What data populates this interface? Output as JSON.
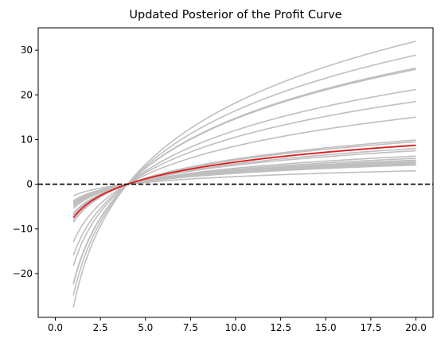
{
  "chart_data": {
    "type": "line",
    "title": "Updated Posterior of the Profit Curve",
    "xlabel": "",
    "ylabel": "",
    "xlim": [
      -0.95,
      20.95
    ],
    "ylim": [
      -29.8,
      35.0
    ],
    "xticks": [
      0.0,
      2.5,
      5.0,
      7.5,
      10.0,
      12.5,
      15.0,
      17.5,
      20.0
    ],
    "xtick_labels": [
      "0.0",
      "2.5",
      "5.0",
      "7.5",
      "10.0",
      "12.5",
      "15.0",
      "17.5",
      "20.0"
    ],
    "yticks": [
      -20,
      -10,
      0,
      10,
      20,
      30
    ],
    "ytick_labels": [
      "−20",
      "−10",
      "0",
      "10",
      "20",
      "30"
    ],
    "x_range": [
      1,
      20
    ],
    "crossing_x": 4,
    "model": "y = a * ln(x / 4)",
    "posterior_sample_values_at_x20": [
      32.0,
      28.9,
      26.0,
      25.7,
      21.2,
      18.5,
      15.0,
      9.9,
      9.5,
      8.8,
      8.0,
      7.5,
      6.3,
      5.8,
      5.4,
      5.1,
      4.9,
      4.7,
      4.5,
      4.3,
      3.0
    ],
    "posterior_mean_value_at_x20": 8.7,
    "baseline": {
      "y": 0,
      "style": "dashed"
    },
    "colors": {
      "samples": "#bfbfbf",
      "mean": "#e41a1c",
      "baseline": "#000000"
    },
    "grid": false,
    "legend": "none"
  }
}
